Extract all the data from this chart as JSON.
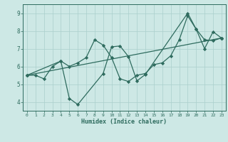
{
  "xlabel": "Humidex (Indice chaleur)",
  "xlim": [
    -0.5,
    23.5
  ],
  "ylim": [
    3.5,
    9.5
  ],
  "yticks": [
    4,
    5,
    6,
    7,
    8,
    9
  ],
  "xticks": [
    0,
    1,
    2,
    3,
    4,
    5,
    6,
    7,
    8,
    9,
    10,
    11,
    12,
    13,
    14,
    15,
    16,
    17,
    18,
    19,
    20,
    21,
    22,
    23
  ],
  "bg_color": "#cde8e5",
  "line_color": "#2e6b5e",
  "grid_color": "#aacfcc",
  "lines": [
    {
      "x": [
        0,
        1,
        2,
        3,
        4,
        5,
        6,
        7,
        8,
        9,
        10,
        11,
        12,
        13,
        14,
        15,
        16,
        17,
        18,
        19,
        20,
        21,
        22,
        23
      ],
      "y": [
        5.5,
        5.5,
        5.3,
        6.0,
        6.3,
        6.0,
        6.2,
        6.5,
        7.5,
        7.2,
        6.5,
        5.3,
        5.15,
        5.5,
        5.6,
        6.1,
        6.2,
        6.6,
        7.5,
        8.85,
        8.1,
        7.5,
        7.45,
        7.6
      ]
    },
    {
      "x": [
        0,
        4,
        5,
        6,
        9,
        10,
        11,
        12,
        13,
        14,
        19,
        20,
        21,
        22,
        23
      ],
      "y": [
        5.5,
        6.3,
        4.2,
        3.85,
        5.6,
        7.1,
        7.15,
        6.55,
        5.18,
        5.55,
        9.0,
        8.1,
        7.0,
        7.95,
        7.6
      ]
    },
    {
      "x": [
        0,
        23
      ],
      "y": [
        5.5,
        7.6
      ]
    }
  ]
}
